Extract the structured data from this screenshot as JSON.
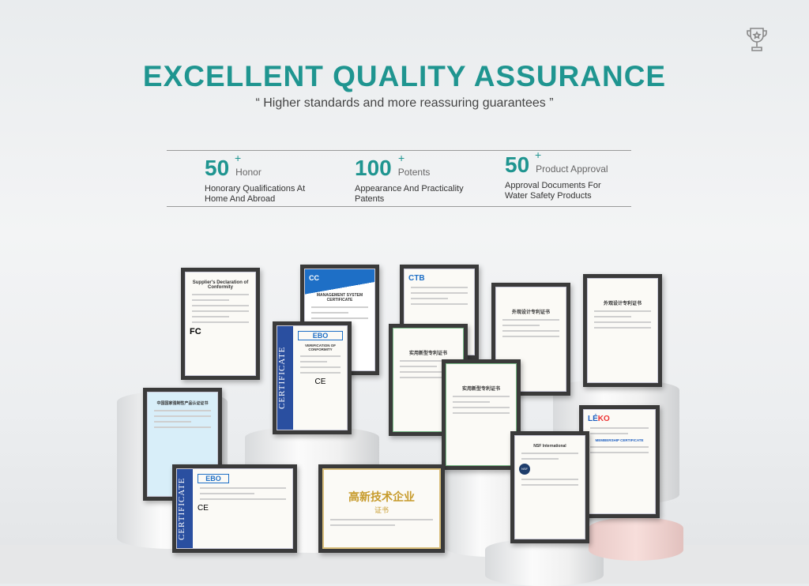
{
  "header": {
    "title": "EXCELLENT QUALITY ASSURANCE",
    "subtitle": "“ Higher standards and more reassuring guarantees ”",
    "icon": "trophy-icon"
  },
  "stats": [
    {
      "number": "50",
      "plus": "+",
      "unit": "Honor",
      "description": "Honorary Qualifications At Home And Abroad"
    },
    {
      "number": "100",
      "plus": "+",
      "unit": "Potents",
      "description": "Appearance And Practicality Patents"
    },
    {
      "number": "50",
      "plus": "+",
      "unit": "Product Approval",
      "description": "Approval Documents For Water Safety Products"
    }
  ],
  "certificates": {
    "fcc": {
      "title": "Supplier's Declaration of Conformity",
      "mark": "FC"
    },
    "mgmt": {
      "logo": "CC",
      "title": "MANAGEMENT SYSTEM CERTIFICATE"
    },
    "ctb": {
      "logo": "CTB"
    },
    "ebo": {
      "logo": "EBO",
      "side": "CERTIFICATE",
      "title": "VERIFICATION OF CONFORMITY",
      "mark": "CE"
    },
    "utility1": {
      "title": "实用新型专利证书"
    },
    "design1": {
      "title": "外观设计专利证书"
    },
    "design2": {
      "title": "外观设计专利证书"
    },
    "utility2": {
      "title": "实用新型专利证书"
    },
    "ccc": {
      "title": "中国国家强制性产品认证证书"
    },
    "leko": {
      "logo_a": "LÉ",
      "logo_b": "KO",
      "title": "MEMBERSHIP CERTIFICATE"
    },
    "ebo2": {
      "logo": "EBO",
      "side": "CERTIFICATE",
      "mark": "CE"
    },
    "hightech": {
      "title": "高新技术企业",
      "subtitle": "证书"
    },
    "nsf": {
      "title": "NSF International",
      "logo": "NSF"
    }
  },
  "colors": {
    "accent": "#1f9590"
  }
}
